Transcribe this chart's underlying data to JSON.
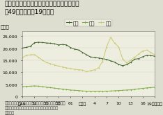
{
  "title": "騒音・振動・悪臭に係る苦情件数の推移（昭\n和49年度〜平成19年度）",
  "ylabel": "（件）",
  "ylim": [
    0,
    27000
  ],
  "yticks": [
    0,
    5000,
    10000,
    15000,
    20000,
    25000
  ],
  "background_color": "#deded0",
  "plot_bg_color": "#eeeee0",
  "legend_labels": [
    "騒音",
    "振動",
    "悪臭"
  ],
  "x_labels": [
    "昭49",
    "52",
    "55",
    "58",
    "61",
    "平成元",
    "4",
    "7",
    "10",
    "13",
    "16",
    "19（年度）"
  ],
  "x_ticks_pos": [
    1974,
    1977,
    1980,
    1983,
    1986,
    1989,
    1992,
    1995,
    1998,
    2001,
    2004,
    2007
  ],
  "souon": {
    "years": [
      1974,
      1975,
      1976,
      1977,
      1978,
      1979,
      1980,
      1981,
      1982,
      1983,
      1984,
      1985,
      1986,
      1987,
      1988,
      1989,
      1990,
      1991,
      1992,
      1993,
      1994,
      1995,
      1996,
      1997,
      1998,
      1999,
      2000,
      2001,
      2002,
      2003,
      2004,
      2005,
      2006,
      2007
    ],
    "values": [
      20000,
      20300,
      20700,
      22200,
      22400,
      22300,
      22100,
      22000,
      21800,
      21300,
      21500,
      21300,
      20200,
      19600,
      19200,
      18200,
      17200,
      16300,
      16200,
      15900,
      15600,
      15300,
      14700,
      14200,
      13200,
      12700,
      13100,
      14100,
      15400,
      15600,
      16400,
      17000,
      16900,
      16600
    ],
    "color": "#3a6028"
  },
  "shindo": {
    "years": [
      1974,
      1975,
      1976,
      1977,
      1978,
      1979,
      1980,
      1981,
      1982,
      1983,
      1984,
      1985,
      1986,
      1987,
      1988,
      1989,
      1990,
      1991,
      1992,
      1993,
      1994,
      1995,
      1996,
      1997,
      1998,
      1999,
      2000,
      2001,
      2002,
      2003,
      2004,
      2005,
      2006,
      2007
    ],
    "values": [
      4000,
      4100,
      4200,
      4300,
      4200,
      4000,
      3800,
      3600,
      3400,
      3200,
      3000,
      2800,
      2600,
      2500,
      2400,
      2200,
      2100,
      2000,
      2000,
      2000,
      2000,
      2100,
      2200,
      2300,
      2400,
      2500,
      2600,
      2700,
      2900,
      3100,
      3300,
      3500,
      3600,
      3800
    ],
    "color": "#7aaa40"
  },
  "akushu": {
    "years": [
      1974,
      1975,
      1976,
      1977,
      1978,
      1979,
      1980,
      1981,
      1982,
      1983,
      1984,
      1985,
      1986,
      1987,
      1988,
      1989,
      1990,
      1991,
      1992,
      1993,
      1994,
      1995,
      1996,
      1997,
      1998,
      1999,
      2000,
      2001,
      2002,
      2003,
      2004,
      2005,
      2006,
      2007
    ],
    "values": [
      16000,
      17000,
      17200,
      17300,
      16200,
      15000,
      14000,
      13500,
      13000,
      12500,
      12200,
      11800,
      11500,
      11200,
      11000,
      10900,
      10200,
      10600,
      11000,
      11800,
      14500,
      20500,
      24500,
      22000,
      20500,
      15500,
      13800,
      15000,
      16200,
      17500,
      18800,
      19200,
      18200,
      17200
    ],
    "color": "#c8c870"
  },
  "title_fontsize": 6.5,
  "axis_fontsize": 5.0,
  "tick_fontsize": 4.5,
  "legend_fontsize": 5.0,
  "footnote_fontsize": 4.2,
  "footnote": "資料：環境省「騒音規制法施行状況調査」、「振動規制\n法施行状況調査」、「悪臭防止法施行状況調査」\nより作成"
}
